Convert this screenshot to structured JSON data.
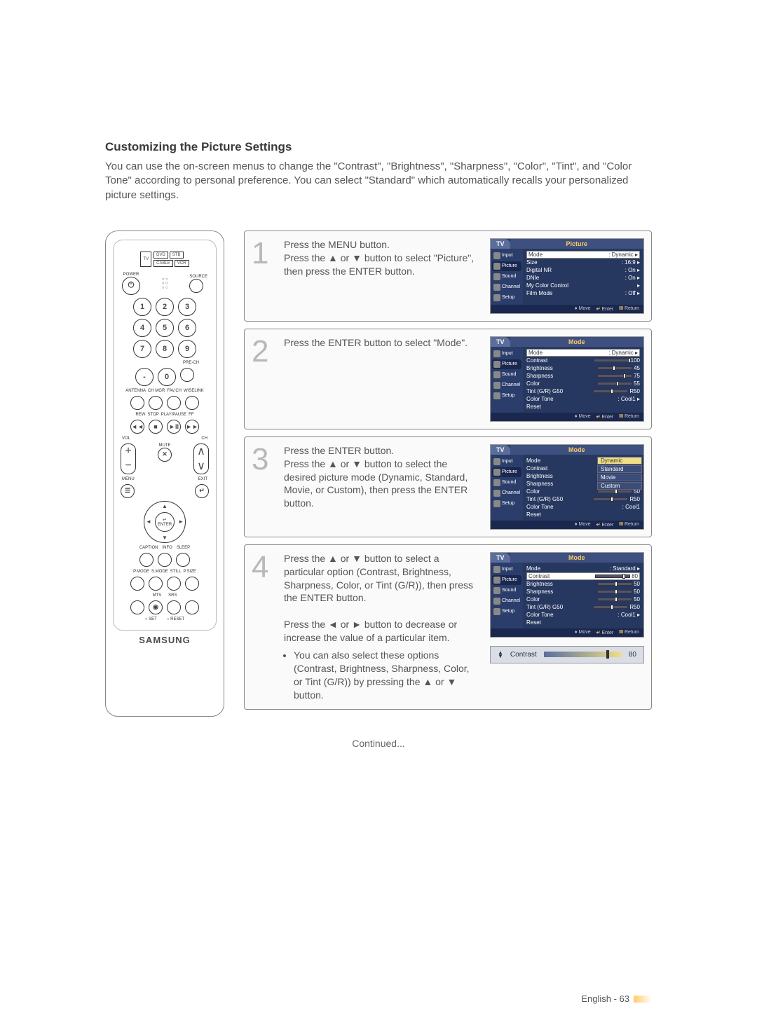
{
  "title": "Customizing the Picture Settings",
  "intro": "You can use the on-screen menus to change the \"Contrast\", \"Brightness\", \"Sharpness\", \"Color\", \"Tint\", and \"Color Tone\" according to personal preference. You can select \"Standard\" which automatically recalls your personalized picture settings.",
  "remote": {
    "srcTop": [
      "DVD",
      "STB"
    ],
    "srcMid": "TV",
    "srcBot": [
      "CABLE",
      "VCR"
    ],
    "power": "POWER",
    "source": "SOURCE",
    "nums": [
      "1",
      "2",
      "3",
      "4",
      "5",
      "6",
      "7",
      "8",
      "9",
      "-",
      "0"
    ],
    "prech": "PRE-CH",
    "row1": [
      "ANTENNA",
      "CH MGR",
      "FAV.CH",
      "WISELINK"
    ],
    "row2": [
      "REW",
      "STOP",
      "PLAY/PAUSE",
      "FF"
    ],
    "vol": "VOL",
    "ch": "CH",
    "mute": "MUTE",
    "menu": "MENU",
    "exit": "EXIT",
    "enter": "ENTER",
    "row3": [
      "CAPTION",
      "INFO",
      "SLEEP"
    ],
    "row4": [
      "P.MODE",
      "S.MODE",
      "STILL",
      "P.SIZE"
    ],
    "row5": [
      "MTS",
      "SRS"
    ],
    "row6": [
      "SET",
      "RESET"
    ],
    "brand": "SAMSUNG"
  },
  "steps": [
    {
      "num": "1",
      "text": "Press the MENU button.\nPress the ▲ or ▼ button to select \"Picture\", then press the ENTER button.",
      "osd": {
        "title": "Picture",
        "side": [
          "Input",
          "Picture",
          "Sound",
          "Channel",
          "Setup"
        ],
        "sel": 1,
        "rows": [
          {
            "label": "Mode",
            "value": ": Dynamic",
            "hl": true,
            "arrow": true
          },
          {
            "label": "Size",
            "value": ": 16:9",
            "arrow": true
          },
          {
            "label": "Digital NR",
            "value": ": On",
            "arrow": true
          },
          {
            "label": "DNIe",
            "value": ": On",
            "arrow": true
          },
          {
            "label": "My Color Control",
            "value": "",
            "arrow": true
          },
          {
            "label": "Film Mode",
            "value": ": Off",
            "arrow": true
          }
        ]
      }
    },
    {
      "num": "2",
      "text": "Press the ENTER button to select \"Mode\".",
      "osd": {
        "title": "Mode",
        "side": [
          "Input",
          "Picture",
          "Sound",
          "Channel",
          "Setup"
        ],
        "sel": 1,
        "rows": [
          {
            "label": "Mode",
            "value": ": Dynamic",
            "hl": true,
            "arrow": true
          },
          {
            "label": "Contrast",
            "slider": 100,
            "val": "100"
          },
          {
            "label": "Brightness",
            "slider": 45,
            "val": "45"
          },
          {
            "label": "Sharpness",
            "slider": 75,
            "val": "75"
          },
          {
            "label": "Color",
            "slider": 55,
            "val": "55"
          },
          {
            "label": "Tint (G/R)",
            "sliderLabel": "G50",
            "slider": 50,
            "val": "R50"
          },
          {
            "label": "Color Tone",
            "value": ": Cool1",
            "arrow": true
          },
          {
            "label": "Reset",
            "value": ""
          }
        ]
      }
    },
    {
      "num": "3",
      "text": "Press the ENTER button.\nPress the ▲ or ▼ button to select the desired picture mode (Dynamic, Standard, Movie, or Custom), then press the ENTER button.",
      "osd": {
        "title": "Mode",
        "side": [
          "Input",
          "Picture",
          "Sound",
          "Channel",
          "Setup"
        ],
        "sel": 1,
        "modeList": [
          "Dynamic",
          "Standard",
          "Movie",
          "Custom"
        ],
        "modeSel": 0,
        "rows2": [
          {
            "label": "Mode"
          },
          {
            "label": "Contrast"
          },
          {
            "label": "Brightness"
          },
          {
            "label": "Sharpness"
          },
          {
            "label": "Color",
            "slider": 50,
            "val": "50"
          },
          {
            "label": "Tint (G/R)",
            "sliderLabel": "G50",
            "slider": 50,
            "val": "R50"
          },
          {
            "label": "Color Tone",
            "value": ": Cool1"
          },
          {
            "label": "Reset"
          }
        ]
      }
    },
    {
      "num": "4",
      "text": "Press the ▲ or ▼ button to select a particular option (Contrast, Brightness, Sharpness, Color, or Tint (G/R)), then press the ENTER button.",
      "text2": "Press the ◄ or ► button to decrease or increase the value of a particular item.",
      "bullet": "You can also select these options (Contrast, Brightness, Sharpness, Color, or Tint (G/R)) by pressing the ▲ or ▼ button.",
      "osd": {
        "title": "Mode",
        "side": [
          "Input",
          "Picture",
          "Sound",
          "Channel",
          "Setup"
        ],
        "sel": 1,
        "rows": [
          {
            "label": "Mode",
            "value": ": Standard",
            "arrow": true
          },
          {
            "label": "Contrast",
            "slider": 80,
            "val": "80",
            "hl": true
          },
          {
            "label": "Brightness",
            "slider": 50,
            "val": "50"
          },
          {
            "label": "Sharpness",
            "slider": 50,
            "val": "50"
          },
          {
            "label": "Color",
            "slider": 50,
            "val": "50"
          },
          {
            "label": "Tint (G/R)",
            "sliderLabel": "G50",
            "slider": 50,
            "val": "R50"
          },
          {
            "label": "Color Tone",
            "value": ": Cool1",
            "arrow": true
          },
          {
            "label": "Reset",
            "value": ""
          }
        ]
      },
      "contrast": {
        "label": "Contrast",
        "value": "80"
      }
    }
  ],
  "foot": {
    "move": "Move",
    "enter": "Enter",
    "return": "Return"
  },
  "continued": "Continued...",
  "pagenum": "English - 63"
}
